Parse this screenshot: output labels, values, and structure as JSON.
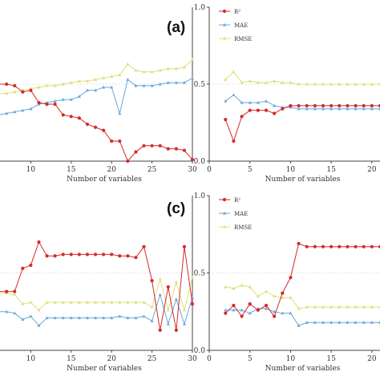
{
  "colors": {
    "r2": "#d42a2a",
    "mae": "#6aa7dd",
    "rmse": "#e0e07a",
    "axis": "#444444"
  },
  "chart_data": [
    {
      "id": "a-left",
      "type": "line",
      "panel_label": "(a)",
      "xlabel": "Number of variables",
      "xlim": [
        5,
        30
      ],
      "ylim": [
        0,
        1
      ],
      "xticks": [
        10,
        15,
        20,
        25,
        30
      ],
      "yticks": [],
      "x": [
        5,
        6,
        7,
        8,
        9,
        10,
        11,
        12,
        13,
        14,
        15,
        16,
        17,
        18,
        19,
        20,
        21,
        22,
        23,
        24,
        25,
        26,
        27,
        28,
        29,
        30
      ],
      "series": [
        {
          "key": "r2",
          "values": [
            0.51,
            0.5,
            0.5,
            0.49,
            0.45,
            0.46,
            0.38,
            0.37,
            0.37,
            0.3,
            0.29,
            0.28,
            0.24,
            0.22,
            0.2,
            0.13,
            0.13,
            0.0,
            0.06,
            0.1,
            0.1,
            0.1,
            0.08,
            0.08,
            0.07,
            0.01
          ]
        },
        {
          "key": "mae",
          "values": [
            0.3,
            0.3,
            0.31,
            0.32,
            0.33,
            0.34,
            0.37,
            0.38,
            0.39,
            0.4,
            0.4,
            0.42,
            0.46,
            0.46,
            0.48,
            0.48,
            0.31,
            0.53,
            0.49,
            0.49,
            0.49,
            0.5,
            0.51,
            0.51,
            0.51,
            0.54
          ]
        },
        {
          "key": "rmse",
          "values": [
            0.44,
            0.44,
            0.44,
            0.45,
            0.46,
            0.47,
            0.48,
            0.49,
            0.49,
            0.5,
            0.51,
            0.52,
            0.52,
            0.53,
            0.54,
            0.55,
            0.56,
            0.63,
            0.59,
            0.58,
            0.58,
            0.59,
            0.6,
            0.6,
            0.61,
            0.66
          ]
        }
      ]
    },
    {
      "id": "a-right",
      "type": "line",
      "xlabel": "Number of variables",
      "xlim": [
        0,
        21
      ],
      "ylim": [
        0,
        1
      ],
      "xticks": [
        0,
        5,
        10,
        15,
        20
      ],
      "yticks": [
        "0.0",
        "0.5",
        "1.0"
      ],
      "x": [
        2,
        3,
        4,
        5,
        6,
        7,
        8,
        9,
        10,
        11,
        12,
        13,
        14,
        15,
        16,
        17,
        18,
        19,
        20,
        21
      ],
      "legend": [
        "R²",
        "MAE",
        "RMSE"
      ],
      "series": [
        {
          "key": "r2",
          "values": [
            0.27,
            0.13,
            0.29,
            0.33,
            0.33,
            0.33,
            0.31,
            0.34,
            0.36,
            0.36,
            0.36,
            0.36,
            0.36,
            0.36,
            0.36,
            0.36,
            0.36,
            0.36,
            0.36,
            0.36
          ]
        },
        {
          "key": "mae",
          "values": [
            0.39,
            0.43,
            0.38,
            0.38,
            0.38,
            0.39,
            0.36,
            0.35,
            0.35,
            0.34,
            0.34,
            0.34,
            0.34,
            0.34,
            0.34,
            0.34,
            0.34,
            0.34,
            0.34,
            0.34
          ]
        },
        {
          "key": "rmse",
          "values": [
            0.53,
            0.58,
            0.51,
            0.52,
            0.51,
            0.51,
            0.52,
            0.51,
            0.51,
            0.5,
            0.5,
            0.5,
            0.5,
            0.5,
            0.5,
            0.5,
            0.5,
            0.5,
            0.5,
            0.5
          ]
        }
      ]
    },
    {
      "id": "c-left",
      "type": "line",
      "panel_label": "(c)",
      "xlabel": "Number of variables",
      "xlim": [
        5,
        30
      ],
      "ylim": [
        0,
        1
      ],
      "xticks": [
        10,
        15,
        20,
        25,
        30
      ],
      "yticks": [],
      "x": [
        5,
        6,
        7,
        8,
        9,
        10,
        11,
        12,
        13,
        14,
        15,
        16,
        17,
        18,
        19,
        20,
        21,
        22,
        23,
        24,
        25,
        26,
        27,
        28,
        29,
        30
      ],
      "series": [
        {
          "key": "r2",
          "values": [
            0.41,
            0.38,
            0.38,
            0.38,
            0.53,
            0.55,
            0.7,
            0.61,
            0.61,
            0.62,
            0.62,
            0.62,
            0.62,
            0.62,
            0.62,
            0.62,
            0.61,
            0.61,
            0.6,
            0.67,
            0.45,
            0.13,
            0.41,
            0.13,
            0.67,
            0.3
          ]
        },
        {
          "key": "mae",
          "values": [
            0.25,
            0.25,
            0.25,
            0.24,
            0.2,
            0.22,
            0.16,
            0.21,
            0.21,
            0.21,
            0.21,
            0.21,
            0.21,
            0.21,
            0.21,
            0.21,
            0.22,
            0.21,
            0.21,
            0.22,
            0.19,
            0.36,
            0.17,
            0.33,
            0.17,
            0.34
          ]
        },
        {
          "key": "rmse",
          "values": [
            0.35,
            0.37,
            0.37,
            0.36,
            0.3,
            0.31,
            0.26,
            0.31,
            0.31,
            0.31,
            0.31,
            0.31,
            0.31,
            0.31,
            0.31,
            0.31,
            0.31,
            0.31,
            0.31,
            0.31,
            0.28,
            0.46,
            0.26,
            0.44,
            0.26,
            0.47
          ]
        }
      ]
    },
    {
      "id": "c-right",
      "type": "line",
      "xlabel": "Number of variables",
      "xlim": [
        0,
        21
      ],
      "ylim": [
        0,
        1
      ],
      "xticks": [
        0,
        5,
        10,
        15,
        20
      ],
      "yticks": [
        "0.0",
        "0.5",
        "1.0"
      ],
      "x": [
        2,
        3,
        4,
        5,
        6,
        7,
        8,
        9,
        10,
        11,
        12,
        13,
        14,
        15,
        16,
        17,
        18,
        19,
        20,
        21
      ],
      "legend": [
        "R²",
        "MAE",
        "RMSE"
      ],
      "series": [
        {
          "key": "r2",
          "values": [
            0.24,
            0.29,
            0.22,
            0.3,
            0.26,
            0.29,
            0.22,
            0.37,
            0.47,
            0.69,
            0.67,
            0.67,
            0.67,
            0.67,
            0.67,
            0.67,
            0.67,
            0.67,
            0.67,
            0.67
          ]
        },
        {
          "key": "mae",
          "values": [
            0.26,
            0.26,
            0.26,
            0.24,
            0.27,
            0.27,
            0.25,
            0.24,
            0.24,
            0.16,
            0.18,
            0.18,
            0.18,
            0.18,
            0.18,
            0.18,
            0.18,
            0.18,
            0.18,
            0.18
          ]
        },
        {
          "key": "rmse",
          "values": [
            0.41,
            0.4,
            0.42,
            0.41,
            0.35,
            0.38,
            0.35,
            0.34,
            0.34,
            0.27,
            0.28,
            0.28,
            0.28,
            0.28,
            0.28,
            0.28,
            0.28,
            0.28,
            0.28,
            0.28
          ]
        }
      ]
    }
  ]
}
